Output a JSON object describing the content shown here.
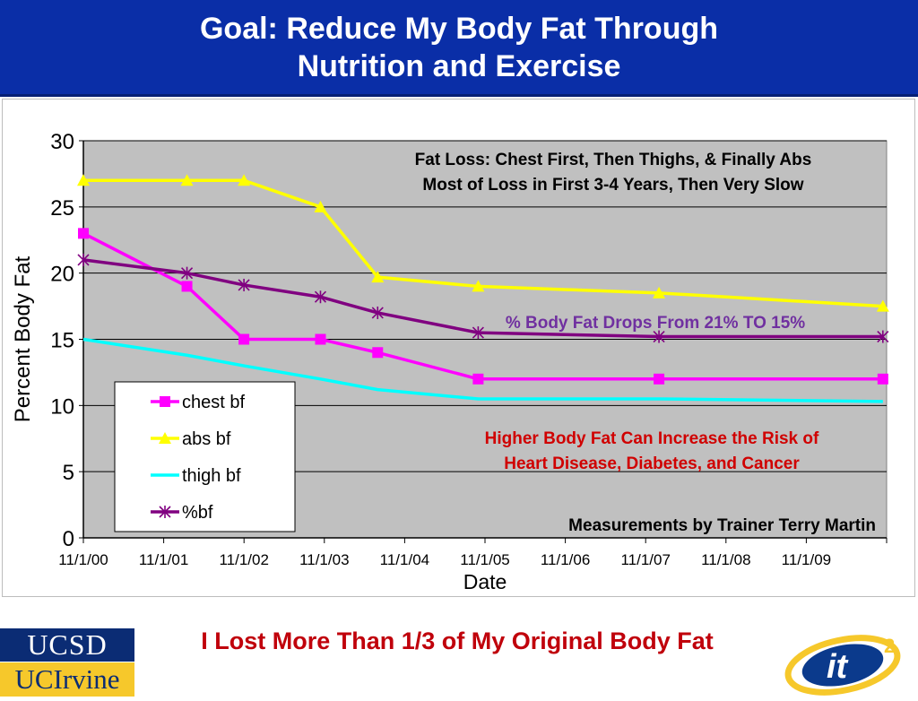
{
  "header": {
    "title_line1": "Goal: Reduce My Body Fat Through",
    "title_line2": "Nutrition and Exercise"
  },
  "footer": {
    "title": "I Lost More Than 1/3 of My Original Body Fat",
    "logo_ucsd": "UCSD",
    "logo_uci": "UCIrvine",
    "logo_it2_text": "it",
    "logo_it2_sup": "2"
  },
  "colors": {
    "header_bg": "#0a2ea7",
    "plot_bg": "#c0c0c0",
    "chest": "#ff00ff",
    "abs": "#ffff00",
    "thigh": "#00ffff",
    "pct": "#800080",
    "note_purple": "#7030a0",
    "note_red": "#d00000",
    "footer_red": "#c0000b"
  },
  "chart_data": {
    "type": "line",
    "title": "",
    "xlabel": "Date",
    "ylabel": "Percent Body Fat",
    "ylim": [
      0,
      30
    ],
    "yticks": [
      0,
      5,
      10,
      15,
      20,
      25,
      30
    ],
    "xlim": [
      "2000-11-01",
      "2010-11-01"
    ],
    "xtick_labels": [
      "11/1/00",
      "11/1/01",
      "11/1/02",
      "11/1/03",
      "11/1/04",
      "11/1/05",
      "11/1/06",
      "11/1/07",
      "11/1/08",
      "11/1/09"
    ],
    "grid": true,
    "legend_position": "bottom-left",
    "series": [
      {
        "name": "chest bf",
        "marker": "square",
        "points": [
          [
            "2000-11-01",
            23
          ],
          [
            "2002-02-15",
            19
          ],
          [
            "2002-11-01",
            15
          ],
          [
            "2003-10-15",
            15
          ],
          [
            "2004-07-01",
            14
          ],
          [
            "2005-10-01",
            12
          ],
          [
            "2008-01-01",
            12
          ],
          [
            "2010-10-15",
            12
          ]
        ]
      },
      {
        "name": "abs bf",
        "marker": "triangle",
        "points": [
          [
            "2000-11-01",
            27
          ],
          [
            "2002-02-15",
            27
          ],
          [
            "2002-11-01",
            27
          ],
          [
            "2003-10-15",
            25
          ],
          [
            "2004-07-01",
            19.7
          ],
          [
            "2005-10-01",
            19
          ],
          [
            "2008-01-01",
            18.5
          ],
          [
            "2010-10-15",
            17.5
          ]
        ]
      },
      {
        "name": "thigh bf",
        "marker": "none",
        "points": [
          [
            "2000-11-01",
            15
          ],
          [
            "2002-02-15",
            13.8
          ],
          [
            "2002-11-01",
            13
          ],
          [
            "2003-10-15",
            12
          ],
          [
            "2004-07-01",
            11.2
          ],
          [
            "2005-10-01",
            10.5
          ],
          [
            "2008-01-01",
            10.5
          ],
          [
            "2010-10-15",
            10.3
          ]
        ]
      },
      {
        "name": "%bf",
        "marker": "star",
        "points": [
          [
            "2000-11-01",
            21
          ],
          [
            "2002-02-15",
            20
          ],
          [
            "2002-11-01",
            19.1
          ],
          [
            "2003-10-15",
            18.2
          ],
          [
            "2004-07-01",
            17
          ],
          [
            "2005-10-01",
            15.5
          ],
          [
            "2008-01-01",
            15.2
          ],
          [
            "2010-10-15",
            15.2
          ]
        ]
      }
    ],
    "annotations": [
      {
        "id": "fat-loss-note",
        "lines": [
          "Fat Loss: Chest First, Then Thighs, & Finally Abs",
          "Most of Loss in First 3-4 Years, Then Very Slow"
        ],
        "color": "#000000"
      },
      {
        "id": "body-fat-drop-note",
        "lines": [
          "% Body Fat Drops From 21% TO 15%"
        ],
        "color": "#7030a0"
      },
      {
        "id": "risk-note",
        "lines": [
          "Higher Body Fat Can Increase the Risk of",
          "Heart Disease, Diabetes, and Cancer"
        ],
        "color": "#d00000"
      },
      {
        "id": "measurements-note",
        "lines": [
          "Measurements by Trainer Terry Martin"
        ],
        "color": "#000000"
      }
    ]
  }
}
